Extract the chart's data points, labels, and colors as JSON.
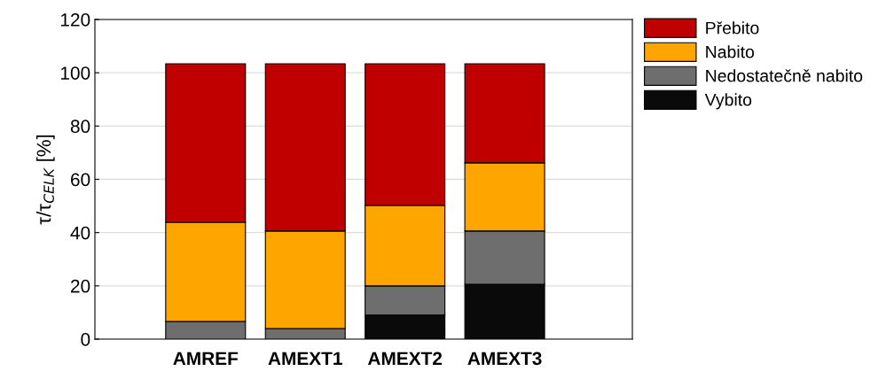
{
  "chart_data": {
    "type": "bar",
    "stacked": true,
    "ylabel": "τ/τ$_{CELK}$ [%]",
    "categories": [
      "AMREF",
      "AMEXT1",
      "AMEXT2",
      "AMEXT3"
    ],
    "series": [
      {
        "name": "Vybito",
        "color": "#0a0a0a",
        "values": [
          0,
          0,
          9.0,
          20.6
        ]
      },
      {
        "name": "Nedostatečně nabito",
        "color": "#6e6e6e",
        "values": [
          6.6,
          4.0,
          11.0,
          20.0
        ]
      },
      {
        "name": "Nabito",
        "color": "#ffa500",
        "values": [
          37.3,
          36.6,
          30.2,
          25.6
        ]
      },
      {
        "name": "Přebito",
        "color": "#c00000",
        "values": [
          59.5,
          62.8,
          53.2,
          37.2
        ]
      }
    ],
    "ylim": [
      0,
      120
    ],
    "yticks": [
      0,
      20,
      40,
      60,
      80,
      100,
      120
    ],
    "grid": "y",
    "legend": "top right"
  }
}
